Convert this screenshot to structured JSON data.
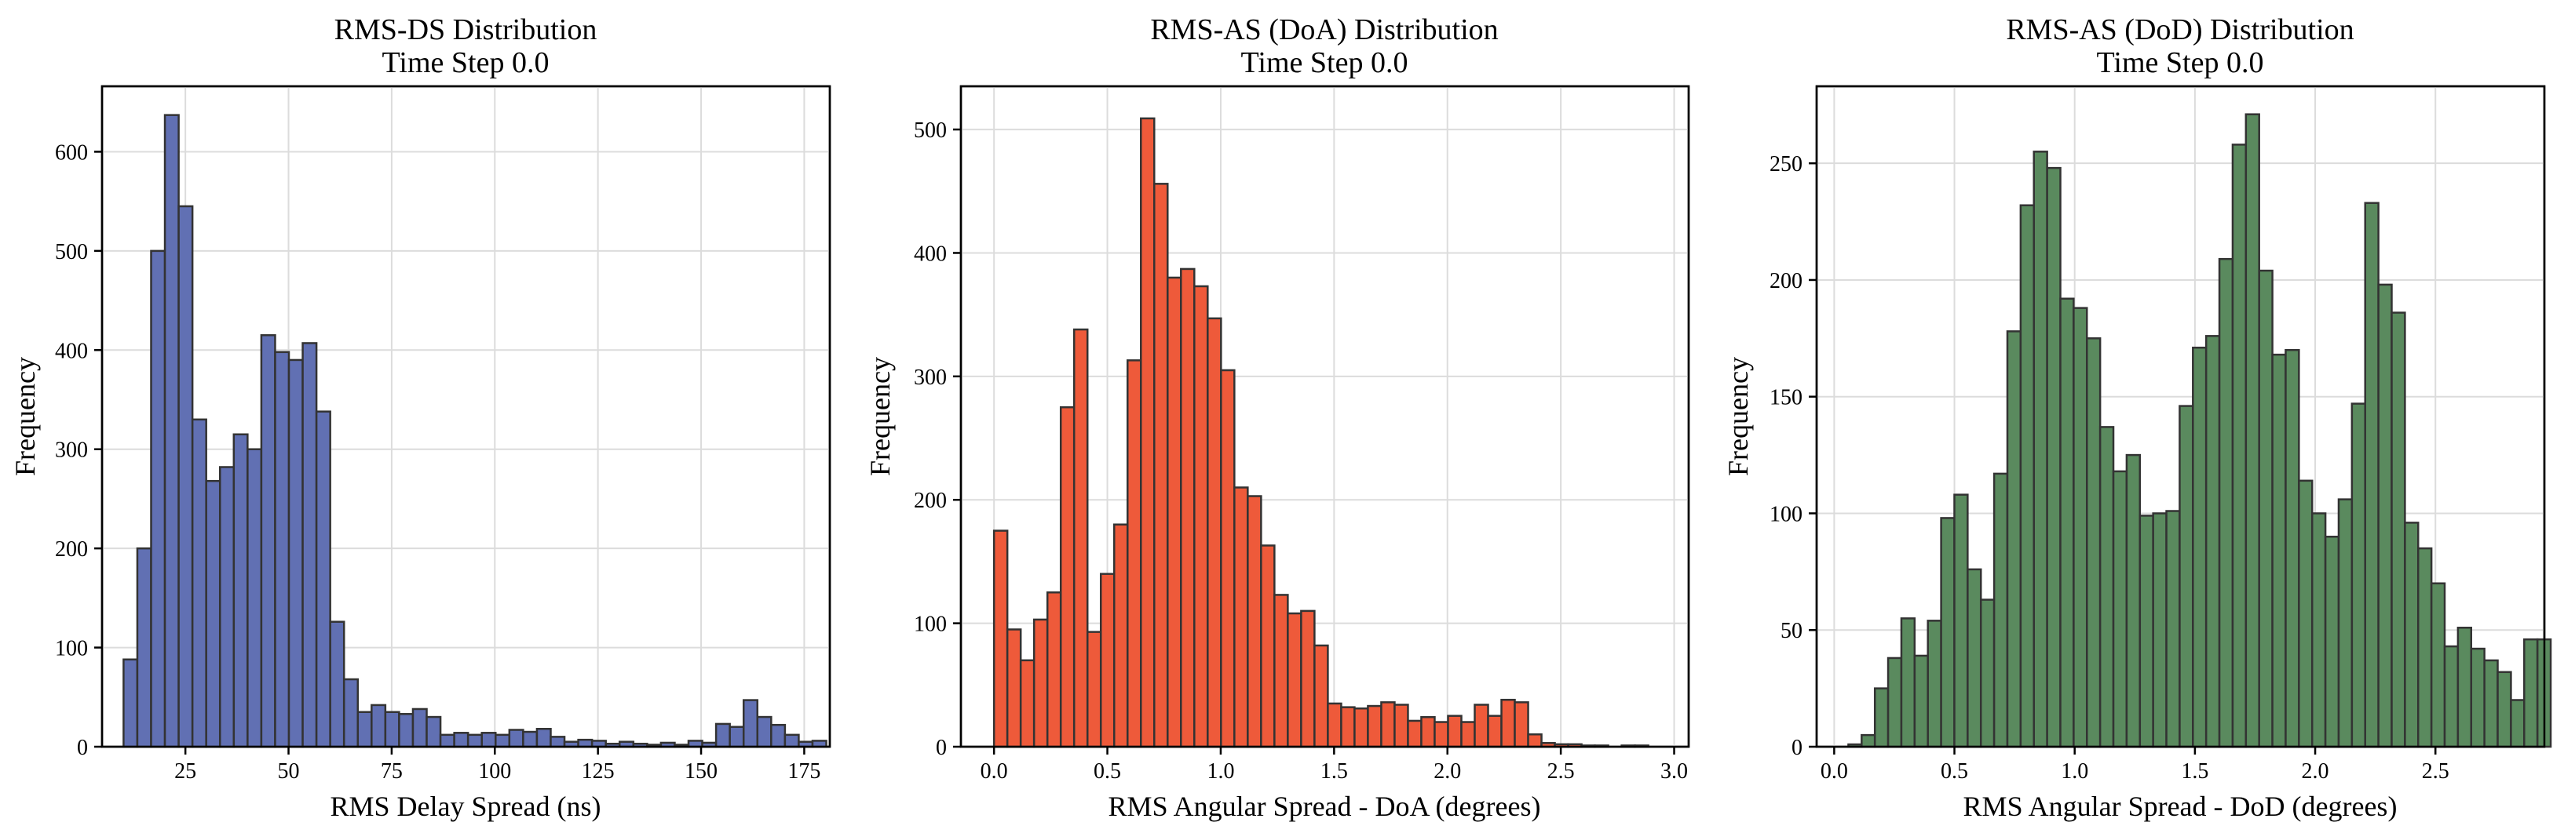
{
  "chart_data": [
    {
      "type": "bar",
      "title": "RMS-DS Distribution",
      "subtitle": "Time Step 0.0",
      "xlabel": "RMS Delay Spread (ns)",
      "ylabel": "Frequency",
      "color": "#6170b3",
      "grid": true,
      "xlim": [
        4.8,
        181.2
      ],
      "ylim": [
        0,
        666
      ],
      "xticks": [
        25,
        50,
        75,
        100,
        125,
        150,
        175
      ],
      "yticks": [
        0,
        100,
        200,
        300,
        400,
        500,
        600
      ],
      "bin_start": 10.01,
      "bin_width": 3.34,
      "values": [
        88,
        200,
        500,
        637,
        545,
        330,
        268,
        282,
        315,
        300,
        415,
        398,
        390,
        407,
        338,
        126,
        68,
        35,
        42,
        35,
        33,
        38,
        30,
        12,
        14,
        12,
        14,
        12,
        17,
        15,
        18,
        10,
        5,
        7,
        6,
        3,
        5,
        3,
        2,
        4,
        2,
        6,
        4,
        23,
        20,
        47,
        30,
        22,
        12,
        5,
        6
      ]
    },
    {
      "type": "bar",
      "title": "RMS-AS (DoA) Distribution",
      "subtitle": "Time Step 0.0",
      "xlabel": "RMS Angular Spread - DoA (degrees)",
      "ylabel": "Frequency",
      "color": "#ee5a3a",
      "grid": true,
      "xlim": [
        -0.146,
        3.064
      ],
      "ylim": [
        0,
        535
      ],
      "xticks": [
        0.0,
        0.5,
        1.0,
        1.5,
        2.0,
        2.5,
        3.0
      ],
      "xtick_labels": [
        "0.0",
        "0.5",
        "1.0",
        "1.5",
        "2.0",
        "2.5",
        "3.0"
      ],
      "yticks": [
        0,
        100,
        200,
        300,
        400,
        500
      ],
      "bin_start": 0.0,
      "bin_width": 0.0589,
      "values": [
        175,
        95,
        70,
        103,
        125,
        275,
        338,
        93,
        140,
        180,
        313,
        509,
        456,
        380,
        387,
        373,
        347,
        305,
        210,
        203,
        163,
        123,
        108,
        110,
        82,
        35,
        32,
        31,
        33,
        36,
        34,
        21,
        24,
        20,
        25,
        20,
        34,
        25,
        38,
        36,
        10,
        3,
        2,
        2,
        1,
        1,
        0,
        1,
        1,
        0
      ]
    },
    {
      "type": "bar",
      "title": "RMS-AS (DoD) Distribution",
      "subtitle": "Time Step 0.0",
      "xlabel": "RMS Angular Spread - DoD (degrees)",
      "ylabel": "Frequency",
      "color": "#5a8a5e",
      "grid": true,
      "xlim": [
        -0.073,
        2.953
      ],
      "ylim": [
        0,
        283
      ],
      "xticks": [
        0.0,
        0.5,
        1.0,
        1.5,
        2.0,
        2.5
      ],
      "xtick_labels": [
        "0.0",
        "0.5",
        "1.0",
        "1.5",
        "2.0",
        "2.5"
      ],
      "yticks": [
        0,
        50,
        100,
        150,
        200,
        250
      ],
      "bin_start": 0.059,
      "bin_width": 0.0551,
      "values": [
        1,
        5,
        25,
        38,
        55,
        39,
        54,
        98,
        108,
        76,
        63,
        117,
        178,
        232,
        255,
        248,
        192,
        188,
        175,
        137,
        118,
        125,
        99,
        100,
        101,
        146,
        171,
        176,
        209,
        258,
        271,
        204,
        168,
        170,
        114,
        100,
        90,
        106,
        147,
        233,
        198,
        186,
        96,
        85,
        70,
        43,
        51,
        42,
        37,
        32,
        20,
        46,
        46
      ]
    }
  ]
}
